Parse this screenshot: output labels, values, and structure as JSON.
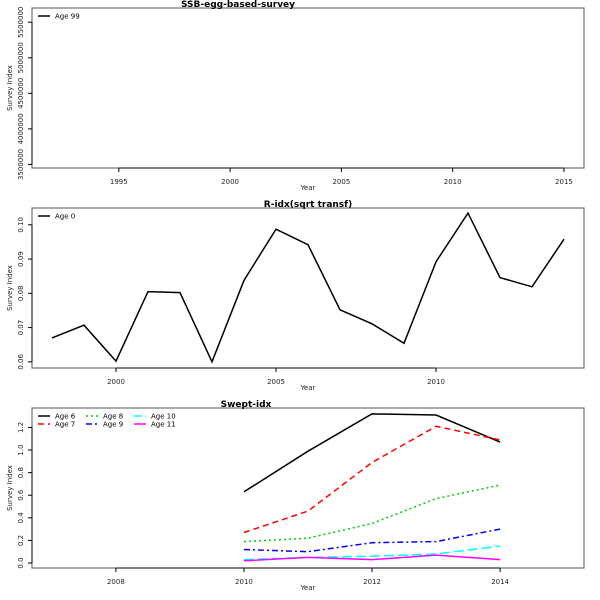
{
  "chart_data": [
    {
      "type": "line",
      "title": "SSB-egg-based-survey",
      "xlabel": "Year",
      "ylabel": "Survey Index",
      "xlim": [
        1991.1,
        2015.9
      ],
      "ylim": [
        3450000,
        5700000
      ],
      "xticks": [
        1995,
        2000,
        2005,
        2010,
        2015
      ],
      "yticks": [
        3500000,
        4000000,
        4500000,
        5000000,
        5500000
      ],
      "legend_position": "top-left",
      "series": [
        {
          "name": "Age 99",
          "color": "#000000",
          "dash": "",
          "x": [],
          "values": []
        }
      ]
    },
    {
      "type": "line",
      "title": "R-idx(sqrt transf)",
      "xlabel": "Year",
      "ylabel": "Survey Index",
      "xlim": [
        1997.375,
        2014.625
      ],
      "ylim": [
        0.0582,
        0.1049
      ],
      "xticks": [
        2000,
        2005,
        2010
      ],
      "yticks": [
        0.06,
        0.07,
        0.08,
        0.09,
        0.1
      ],
      "ytick_labels": [
        "0.06",
        "0.07",
        "0.08",
        "0.09",
        "0.10"
      ],
      "legend_position": "top-left",
      "series": [
        {
          "name": "Age 0",
          "color": "#000000",
          "dash": "",
          "x": [
            1998,
            1999,
            2000,
            2001,
            2002,
            2003,
            2004,
            2005,
            2006,
            2007,
            2008,
            2009,
            2010,
            2011,
            2012,
            2013,
            2014
          ],
          "values": [
            0.067,
            0.0707,
            0.0602,
            0.0805,
            0.0802,
            0.06,
            0.0838,
            0.0987,
            0.0942,
            0.0752,
            0.0711,
            0.0654,
            0.0892,
            0.1034,
            0.0846,
            0.0819,
            0.0958
          ]
        }
      ]
    },
    {
      "type": "line",
      "title": "Swept-idx",
      "xlabel": "Year",
      "ylabel": "Survey Index",
      "xlim": [
        2006.69,
        2015.31
      ],
      "ylim": [
        -0.044,
        1.372
      ],
      "xticks": [
        2008,
        2010,
        2012,
        2014
      ],
      "yticks": [
        0,
        0.2,
        0.4,
        0.6,
        0.8,
        1.0,
        1.2
      ],
      "ytick_labels": [
        "0.0",
        "0.2",
        "0.4",
        "0.6",
        "0.8",
        "1.0",
        "1.2"
      ],
      "legend_position": "top-left",
      "series": [
        {
          "name": "Age 6",
          "color": "#000000",
          "dash": "",
          "x": [
            2010,
            2011,
            2012,
            2013,
            2014
          ],
          "values": [
            0.63,
            0.99,
            1.32,
            1.31,
            1.07
          ]
        },
        {
          "name": "Age 7",
          "color": "#ff0000",
          "dash": "6,4",
          "x": [
            2010,
            2011,
            2012,
            2013,
            2014
          ],
          "values": [
            0.27,
            0.46,
            0.89,
            1.21,
            1.09
          ]
        },
        {
          "name": "Age 8",
          "color": "#00cd00",
          "dash": "2,3",
          "x": [
            2010,
            2011,
            2012,
            2013,
            2014
          ],
          "values": [
            0.19,
            0.22,
            0.35,
            0.57,
            0.69
          ]
        },
        {
          "name": "Age 9",
          "color": "#0000ff",
          "dash": "6,3,2,3",
          "x": [
            2010,
            2011,
            2012,
            2013,
            2014
          ],
          "values": [
            0.12,
            0.1,
            0.18,
            0.19,
            0.3
          ]
        },
        {
          "name": "Age 10",
          "color": "#00ffff",
          "dash": "10,4",
          "x": [
            2010,
            2011,
            2012,
            2013,
            2014
          ],
          "values": [
            0.03,
            0.05,
            0.06,
            0.08,
            0.15
          ]
        },
        {
          "name": "Age 11",
          "color": "#ff00ff",
          "dash": "",
          "x": [
            2010,
            2011,
            2012,
            2013,
            2014
          ],
          "values": [
            0.02,
            0.05,
            0.03,
            0.07,
            0.03
          ]
        }
      ]
    }
  ]
}
